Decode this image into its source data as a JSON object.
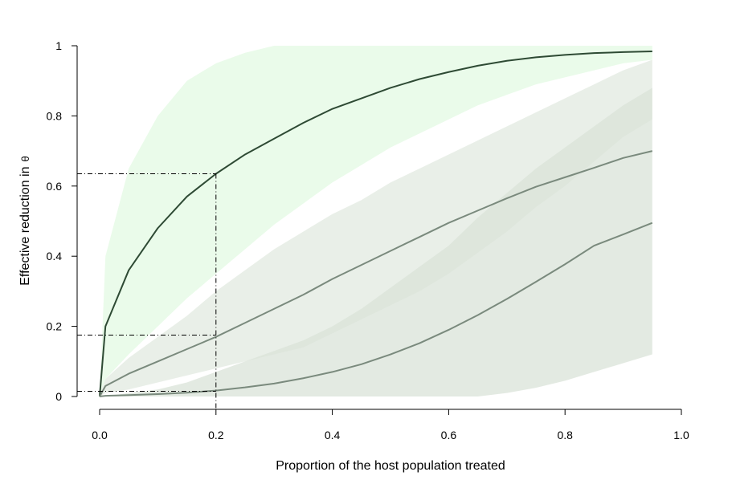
{
  "chart_data": {
    "type": "line",
    "xlabel": "Proportion of the host population treated",
    "ylabel": "Effective reduction in",
    "ylabel_symbol": "θ",
    "xlim": [
      0,
      1
    ],
    "ylim": [
      0,
      1
    ],
    "x_ticks": [
      "0.0",
      "0.2",
      "0.4",
      "0.6",
      "0.8",
      "1.0"
    ],
    "y_ticks": [
      "0",
      "0.2",
      "0.4",
      "0.6",
      "0.8",
      "1"
    ],
    "grid": false,
    "legend": "none",
    "series": [
      {
        "color": "#2e4a34",
        "x": [
          0,
          0.01,
          0.05,
          0.1,
          0.15,
          0.2,
          0.25,
          0.3,
          0.35,
          0.4,
          0.45,
          0.5,
          0.55,
          0.6,
          0.65,
          0.7,
          0.75,
          0.8,
          0.85,
          0.9,
          0.95
        ],
        "y": [
          0,
          0.2,
          0.36,
          0.48,
          0.57,
          0.635,
          0.69,
          0.735,
          0.78,
          0.82,
          0.85,
          0.88,
          0.905,
          0.925,
          0.943,
          0.957,
          0.967,
          0.974,
          0.979,
          0.982,
          0.984
        ],
        "band_lower": [
          0,
          0.05,
          0.12,
          0.2,
          0.28,
          0.35,
          0.42,
          0.49,
          0.55,
          0.61,
          0.66,
          0.71,
          0.75,
          0.79,
          0.83,
          0.86,
          0.89,
          0.91,
          0.93,
          0.95,
          0.96
        ],
        "band_upper": [
          0,
          0.4,
          0.65,
          0.8,
          0.9,
          0.95,
          0.98,
          1.0,
          1.0,
          1.0,
          1.0,
          1.0,
          1.0,
          1.0,
          1.0,
          1.0,
          1.0,
          1.0,
          1.0,
          1.0,
          1.0
        ],
        "band_color": "#eafbea"
      },
      {
        "color": "#7a8a7d",
        "x": [
          0,
          0.01,
          0.05,
          0.1,
          0.15,
          0.2,
          0.25,
          0.3,
          0.35,
          0.4,
          0.45,
          0.5,
          0.55,
          0.6,
          0.65,
          0.7,
          0.75,
          0.8,
          0.85,
          0.9,
          0.95
        ],
        "y": [
          0,
          0.03,
          0.065,
          0.1,
          0.135,
          0.17,
          0.21,
          0.25,
          0.29,
          0.335,
          0.375,
          0.415,
          0.455,
          0.495,
          0.53,
          0.565,
          0.598,
          0.625,
          0.652,
          0.68,
          0.7
        ],
        "band_lower": [
          0,
          0.01,
          0.02,
          0.04,
          0.06,
          0.08,
          0.1,
          0.12,
          0.14,
          0.18,
          0.22,
          0.26,
          0.3,
          0.35,
          0.41,
          0.47,
          0.54,
          0.6,
          0.67,
          0.74,
          0.79
        ],
        "band_upper": [
          0,
          0.05,
          0.11,
          0.17,
          0.23,
          0.3,
          0.36,
          0.42,
          0.47,
          0.52,
          0.56,
          0.61,
          0.65,
          0.69,
          0.73,
          0.77,
          0.81,
          0.85,
          0.89,
          0.93,
          0.96
        ],
        "band_color": "#e9efe8"
      },
      {
        "color": "#7a8a7d",
        "x": [
          0,
          0.01,
          0.05,
          0.1,
          0.15,
          0.2,
          0.25,
          0.3,
          0.35,
          0.4,
          0.45,
          0.5,
          0.55,
          0.6,
          0.65,
          0.7,
          0.75,
          0.8,
          0.85,
          0.9,
          0.95
        ],
        "y": [
          0,
          0.002,
          0.004,
          0.007,
          0.011,
          0.017,
          0.026,
          0.037,
          0.052,
          0.07,
          0.092,
          0.12,
          0.152,
          0.19,
          0.232,
          0.278,
          0.327,
          0.377,
          0.43,
          0.462,
          0.495
        ],
        "band_lower": [
          0,
          0,
          0,
          0,
          0,
          0,
          0,
          0,
          0,
          0,
          0,
          0,
          0,
          0,
          0,
          0.01,
          0.025,
          0.045,
          0.07,
          0.095,
          0.12
        ],
        "band_upper": [
          0,
          0,
          0.01,
          0.02,
          0.04,
          0.07,
          0.1,
          0.13,
          0.16,
          0.2,
          0.25,
          0.31,
          0.37,
          0.43,
          0.51,
          0.58,
          0.65,
          0.71,
          0.77,
          0.83,
          0.88
        ],
        "band_color": "#d9e3d8",
        "band_opacity": 0.75
      }
    ],
    "reference_lines": [
      {
        "x": 0.2,
        "y": 0.635
      },
      {
        "x": 0.2,
        "y": 0.175
      },
      {
        "x": 0.2,
        "y": 0.015
      }
    ]
  }
}
